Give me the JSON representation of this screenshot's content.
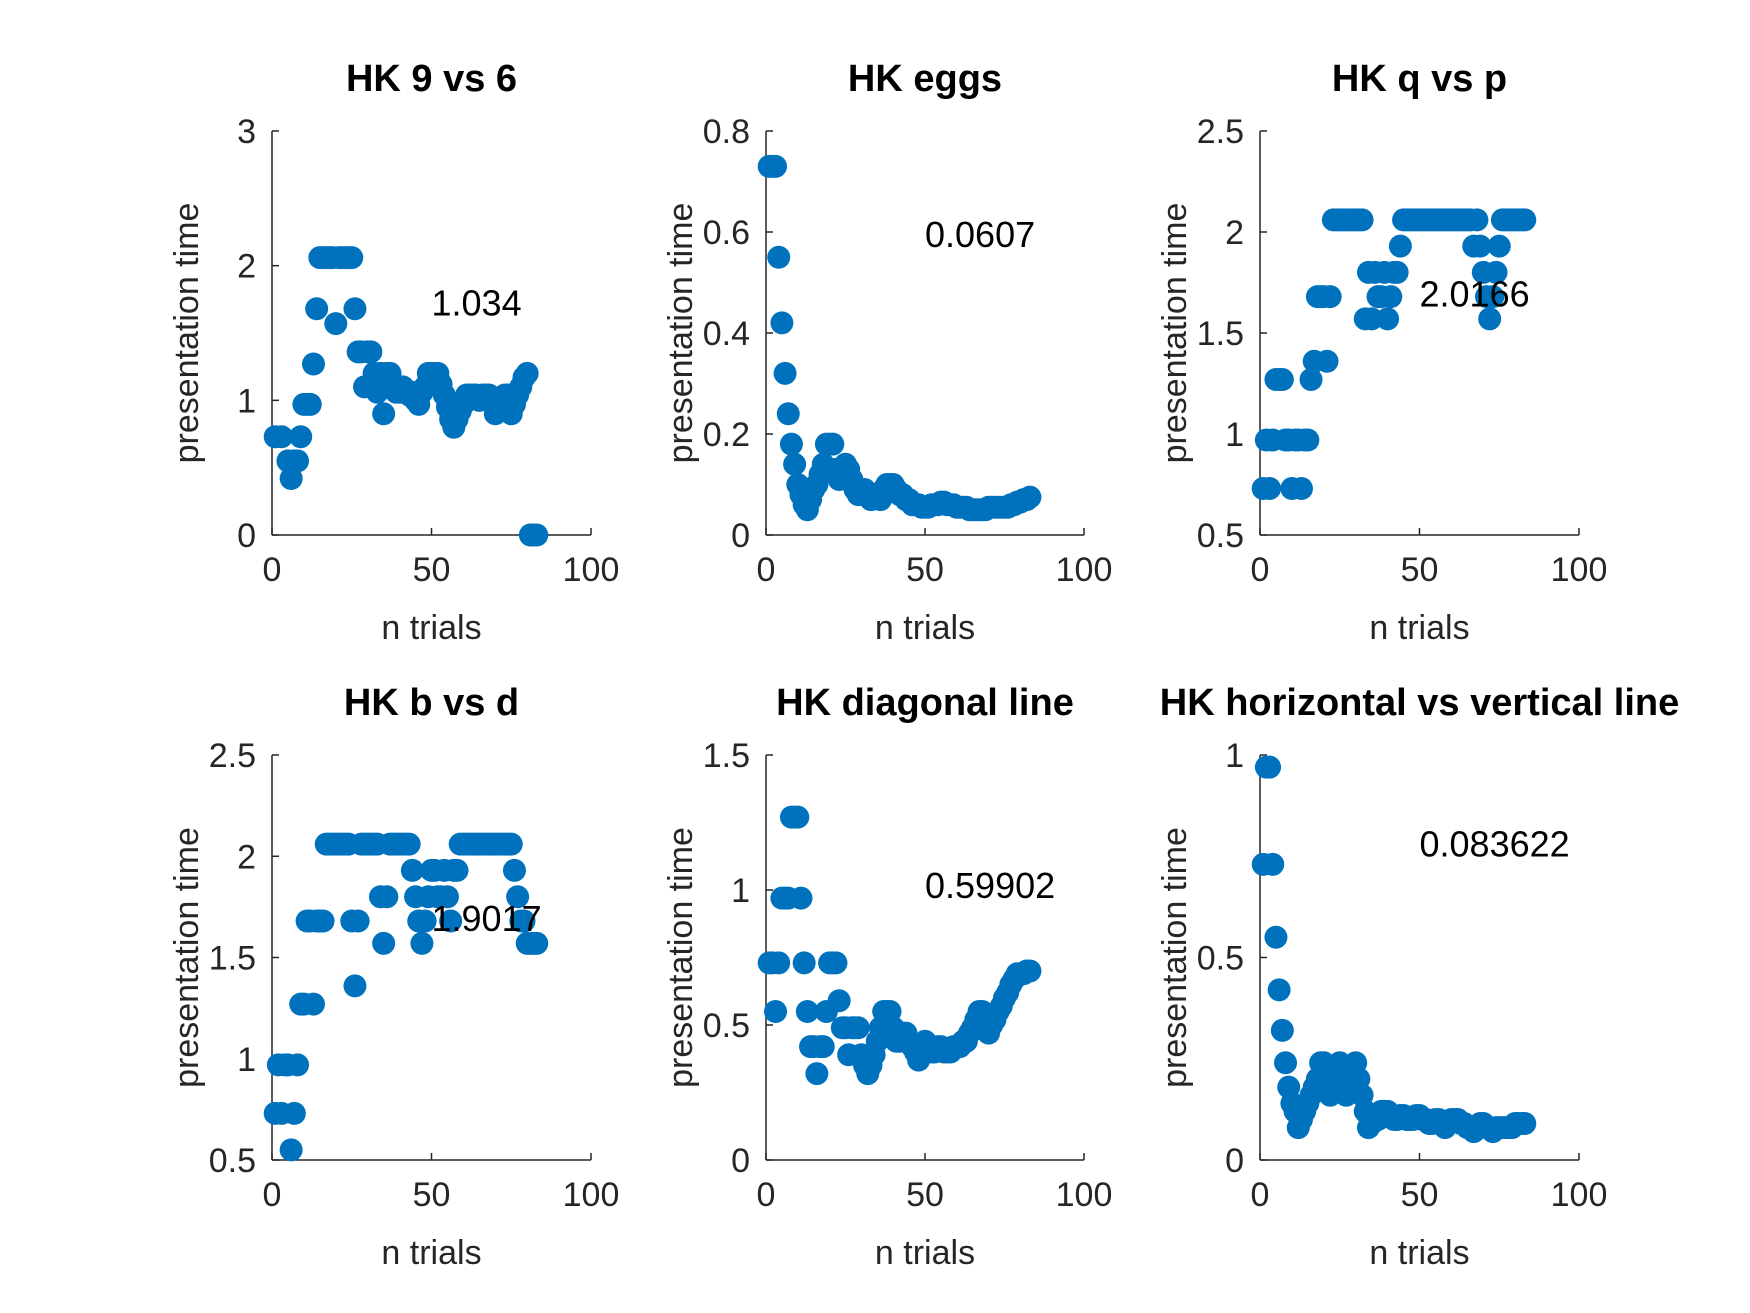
{
  "figure_colors": {
    "marker": "#0072BD",
    "axis": "#262626",
    "text": "#000000"
  },
  "chart_data": [
    {
      "type": "scatter",
      "title": "HK 9 vs 6",
      "xlabel": "n trials",
      "ylabel": "presentation time",
      "xlim": [
        0,
        100
      ],
      "ylim": [
        0,
        3
      ],
      "xticks": [
        "0",
        "50",
        "100"
      ],
      "yticks": [
        "0",
        "1",
        "2",
        "3"
      ],
      "annotation": {
        "text": "1.034",
        "x": 50,
        "y": 1.63
      },
      "x": [
        1,
        3,
        5,
        6,
        7,
        8,
        9,
        10,
        11,
        12,
        13,
        14,
        15,
        16,
        17,
        18,
        19,
        20,
        21,
        22,
        23,
        24,
        25,
        26,
        27,
        28,
        29,
        30,
        31,
        32,
        33,
        34,
        35,
        36,
        37,
        38,
        39,
        40,
        41,
        42,
        43,
        44,
        45,
        46,
        47,
        48,
        49,
        50,
        51,
        52,
        53,
        54,
        55,
        56,
        57,
        58,
        59,
        60,
        61,
        62,
        63,
        64,
        65,
        66,
        67,
        68,
        69,
        70,
        71,
        72,
        73,
        74,
        75,
        76,
        77,
        78,
        79,
        80,
        81,
        82,
        83
      ],
      "y": [
        0.73,
        0.73,
        0.55,
        0.42,
        0.55,
        0.55,
        0.73,
        0.97,
        0.97,
        0.97,
        1.27,
        1.68,
        2.06,
        2.06,
        2.06,
        2.06,
        2.06,
        1.57,
        2.06,
        2.06,
        2.06,
        2.06,
        2.06,
        1.68,
        1.36,
        1.36,
        1.1,
        1.36,
        1.36,
        1.2,
        1.06,
        1.2,
        0.9,
        1.2,
        1.2,
        1.12,
        1.06,
        1.06,
        1.1,
        1.06,
        1.04,
        1.06,
        1.0,
        0.97,
        1.06,
        1.1,
        1.2,
        1.2,
        1.2,
        1.2,
        1.12,
        1.04,
        0.95,
        0.86,
        0.8,
        0.86,
        0.92,
        0.97,
        1.04,
        1.04,
        1.04,
        1.04,
        1.0,
        1.04,
        1.04,
        1.04,
        1.0,
        0.9,
        1.0,
        0.95,
        1.04,
        1.04,
        0.9,
        0.97,
        1.04,
        1.1,
        1.17,
        1.2,
        0,
        0,
        0
      ]
    },
    {
      "type": "scatter",
      "title": "HK eggs",
      "xlabel": "n trials",
      "ylabel": "presentation time",
      "xlim": [
        0,
        100
      ],
      "ylim": [
        0,
        0.8
      ],
      "xticks": [
        "0",
        "50",
        "100"
      ],
      "yticks": [
        "0",
        "0.2",
        "0.4",
        "0.6",
        "0.8"
      ],
      "annotation": {
        "text": "0.0607",
        "x": 50,
        "y": 0.57
      },
      "x": [
        1,
        2,
        3,
        4,
        5,
        6,
        7,
        8,
        9,
        10,
        11,
        12,
        13,
        14,
        15,
        16,
        17,
        18,
        19,
        20,
        21,
        22,
        23,
        24,
        25,
        26,
        27,
        28,
        29,
        30,
        31,
        32,
        33,
        34,
        35,
        36,
        37,
        38,
        39,
        40,
        41,
        42,
        43,
        44,
        45,
        46,
        47,
        48,
        49,
        50,
        51,
        52,
        53,
        54,
        55,
        56,
        57,
        58,
        59,
        60,
        61,
        62,
        63,
        64,
        65,
        66,
        67,
        68,
        69,
        70,
        71,
        72,
        73,
        74,
        75,
        76,
        77,
        78,
        79,
        80,
        81,
        82,
        83
      ],
      "y": [
        0.73,
        0.73,
        0.73,
        0.55,
        0.42,
        0.32,
        0.24,
        0.18,
        0.14,
        0.1,
        0.08,
        0.06,
        0.05,
        0.07,
        0.09,
        0.1,
        0.12,
        0.14,
        0.18,
        0.18,
        0.18,
        0.13,
        0.11,
        0.12,
        0.14,
        0.13,
        0.11,
        0.09,
        0.08,
        0.08,
        0.09,
        0.08,
        0.07,
        0.08,
        0.08,
        0.07,
        0.09,
        0.1,
        0.1,
        0.1,
        0.09,
        0.08,
        0.08,
        0.07,
        0.07,
        0.06,
        0.06,
        0.06,
        0.055,
        0.055,
        0.055,
        0.06,
        0.06,
        0.06,
        0.065,
        0.065,
        0.06,
        0.06,
        0.06,
        0.055,
        0.055,
        0.055,
        0.055,
        0.05,
        0.05,
        0.05,
        0.05,
        0.05,
        0.05,
        0.055,
        0.055,
        0.055,
        0.055,
        0.055,
        0.055,
        0.055,
        0.06,
        0.06,
        0.065,
        0.065,
        0.07,
        0.07,
        0.075
      ]
    },
    {
      "type": "scatter",
      "title": "HK q vs p",
      "xlabel": "n trials",
      "ylabel": "presentation time",
      "xlim": [
        0,
        100
      ],
      "ylim": [
        0.5,
        2.5
      ],
      "xticks": [
        "0",
        "50",
        "100"
      ],
      "yticks": [
        "0.5",
        "1",
        "1.5",
        "2",
        "2.5"
      ],
      "annotation": {
        "text": "2.0166",
        "x": 50,
        "y": 1.63
      },
      "x": [
        1,
        2,
        3,
        4,
        5,
        6,
        7,
        8,
        9,
        10,
        11,
        12,
        13,
        14,
        15,
        16,
        17,
        18,
        19,
        20,
        21,
        22,
        23,
        24,
        25,
        26,
        27,
        28,
        29,
        30,
        31,
        32,
        33,
        34,
        35,
        36,
        37,
        38,
        39,
        40,
        41,
        42,
        43,
        44,
        45,
        46,
        47,
        48,
        49,
        50,
        51,
        52,
        53,
        54,
        55,
        56,
        57,
        58,
        59,
        60,
        61,
        62,
        63,
        64,
        65,
        66,
        67,
        68,
        69,
        70,
        71,
        72,
        73,
        74,
        75,
        76,
        77,
        78,
        79,
        80,
        81,
        82,
        83
      ],
      "y": [
        0.73,
        0.97,
        0.73,
        0.97,
        1.27,
        1.27,
        1.27,
        0.97,
        0.97,
        0.73,
        0.97,
        0.97,
        0.73,
        0.97,
        0.97,
        1.27,
        1.36,
        1.68,
        1.68,
        1.68,
        1.36,
        1.68,
        2.06,
        2.06,
        2.06,
        2.06,
        2.06,
        2.06,
        2.06,
        2.06,
        2.06,
        2.06,
        1.57,
        1.8,
        1.57,
        1.8,
        1.68,
        1.68,
        1.8,
        1.57,
        1.68,
        1.8,
        1.8,
        1.93,
        2.06,
        2.06,
        2.06,
        2.06,
        2.06,
        2.06,
        2.06,
        2.06,
        2.06,
        2.06,
        2.06,
        2.06,
        2.06,
        2.06,
        2.06,
        2.06,
        2.06,
        2.06,
        2.06,
        2.06,
        2.06,
        2.06,
        1.93,
        2.06,
        1.93,
        1.8,
        1.68,
        1.57,
        1.68,
        1.8,
        1.93,
        2.06,
        2.06,
        2.06,
        2.06,
        2.06,
        2.06,
        2.06,
        2.06
      ]
    },
    {
      "type": "scatter",
      "title": "HK b vs d",
      "xlabel": "n trials",
      "ylabel": "presentation time",
      "xlim": [
        0,
        100
      ],
      "ylim": [
        0.5,
        2.5
      ],
      "xticks": [
        "0",
        "50",
        "100"
      ],
      "yticks": [
        "0.5",
        "1",
        "1.5",
        "2",
        "2.5"
      ],
      "annotation": {
        "text": "1.9017",
        "x": 50,
        "y": 1.63
      },
      "x": [
        1,
        2,
        3,
        4,
        5,
        6,
        7,
        8,
        9,
        10,
        11,
        12,
        13,
        14,
        15,
        16,
        17,
        18,
        19,
        20,
        21,
        22,
        23,
        24,
        25,
        26,
        27,
        28,
        29,
        30,
        31,
        32,
        33,
        34,
        35,
        36,
        37,
        38,
        39,
        40,
        41,
        42,
        43,
        44,
        45,
        46,
        47,
        48,
        49,
        50,
        51,
        52,
        53,
        54,
        55,
        56,
        57,
        58,
        59,
        60,
        61,
        62,
        63,
        64,
        65,
        66,
        67,
        68,
        69,
        70,
        71,
        72,
        73,
        74,
        75,
        76,
        77,
        78,
        79,
        80,
        81,
        82,
        83
      ],
      "y": [
        0.73,
        0.97,
        0.73,
        0.97,
        0.97,
        0.55,
        0.73,
        0.97,
        1.27,
        1.27,
        1.68,
        1.68,
        1.27,
        1.68,
        1.68,
        1.68,
        2.06,
        2.06,
        2.06,
        2.06,
        2.06,
        2.06,
        2.06,
        2.06,
        1.68,
        1.36,
        1.68,
        2.06,
        2.06,
        2.06,
        2.06,
        2.06,
        2.06,
        1.8,
        1.57,
        1.8,
        2.06,
        2.06,
        2.06,
        2.06,
        2.06,
        2.06,
        2.06,
        1.93,
        1.8,
        1.68,
        1.57,
        1.68,
        1.8,
        1.93,
        1.93,
        1.8,
        1.8,
        1.93,
        1.8,
        1.68,
        1.93,
        1.93,
        2.06,
        2.06,
        2.06,
        2.06,
        2.06,
        2.06,
        2.06,
        2.06,
        2.06,
        2.06,
        2.06,
        2.06,
        2.06,
        2.06,
        2.06,
        2.06,
        2.06,
        1.93,
        1.8,
        1.68,
        1.68,
        1.57,
        1.57,
        1.57,
        1.57
      ]
    },
    {
      "type": "scatter",
      "title": "HK diagonal line",
      "xlabel": "n trials",
      "ylabel": "presentation time",
      "xlim": [
        0,
        100
      ],
      "ylim": [
        0,
        1.5
      ],
      "xticks": [
        "0",
        "50",
        "100"
      ],
      "yticks": [
        "0",
        "0.5",
        "1",
        "1.5"
      ],
      "annotation": {
        "text": "0.59902",
        "x": 50,
        "y": 0.97
      },
      "x": [
        1,
        2,
        3,
        4,
        5,
        6,
        7,
        8,
        9,
        10,
        11,
        12,
        13,
        14,
        15,
        16,
        17,
        18,
        19,
        20,
        21,
        22,
        23,
        24,
        25,
        26,
        27,
        28,
        29,
        30,
        31,
        32,
        33,
        34,
        35,
        36,
        37,
        38,
        39,
        40,
        41,
        42,
        43,
        44,
        45,
        46,
        47,
        48,
        49,
        50,
        51,
        52,
        53,
        54,
        55,
        56,
        57,
        58,
        59,
        60,
        61,
        62,
        63,
        64,
        65,
        66,
        67,
        68,
        69,
        70,
        71,
        72,
        73,
        74,
        75,
        76,
        77,
        78,
        79,
        80,
        81,
        82,
        83
      ],
      "y": [
        0.73,
        0.73,
        0.55,
        0.73,
        0.97,
        0.97,
        0.97,
        1.27,
        1.27,
        1.27,
        0.97,
        0.73,
        0.55,
        0.42,
        0.42,
        0.32,
        0.42,
        0.42,
        0.55,
        0.73,
        0.73,
        0.73,
        0.59,
        0.49,
        0.49,
        0.39,
        0.49,
        0.49,
        0.49,
        0.39,
        0.35,
        0.32,
        0.35,
        0.39,
        0.44,
        0.49,
        0.55,
        0.55,
        0.55,
        0.49,
        0.44,
        0.44,
        0.47,
        0.47,
        0.44,
        0.42,
        0.4,
        0.37,
        0.4,
        0.44,
        0.42,
        0.4,
        0.4,
        0.42,
        0.42,
        0.4,
        0.4,
        0.4,
        0.42,
        0.42,
        0.42,
        0.44,
        0.44,
        0.47,
        0.49,
        0.52,
        0.55,
        0.55,
        0.5,
        0.47,
        0.5,
        0.52,
        0.55,
        0.57,
        0.6,
        0.62,
        0.65,
        0.67,
        0.69,
        0.69,
        0.69,
        0.7,
        0.7
      ]
    },
    {
      "type": "scatter",
      "title": "HK horizontal vs vertical line",
      "xlabel": "n trials",
      "ylabel": "presentation time",
      "xlim": [
        0,
        100
      ],
      "ylim": [
        0,
        1
      ],
      "xticks": [
        "0",
        "50",
        "100"
      ],
      "yticks": [
        "0",
        "0.5",
        "1"
      ],
      "annotation": {
        "text": "0.083622",
        "x": 50,
        "y": 0.75
      },
      "x": [
        1,
        2,
        3,
        4,
        5,
        6,
        7,
        8,
        9,
        10,
        11,
        12,
        13,
        14,
        15,
        16,
        17,
        18,
        19,
        20,
        21,
        22,
        23,
        24,
        25,
        26,
        27,
        28,
        29,
        30,
        31,
        32,
        33,
        34,
        35,
        36,
        37,
        38,
        39,
        40,
        41,
        42,
        43,
        44,
        45,
        46,
        47,
        48,
        49,
        50,
        51,
        52,
        53,
        54,
        55,
        56,
        57,
        58,
        59,
        60,
        61,
        62,
        63,
        64,
        65,
        66,
        67,
        68,
        69,
        70,
        71,
        72,
        73,
        74,
        75,
        76,
        77,
        78,
        79,
        80,
        81,
        82,
        83
      ],
      "y": [
        0.73,
        0.97,
        0.97,
        0.73,
        0.55,
        0.42,
        0.32,
        0.24,
        0.18,
        0.14,
        0.12,
        0.08,
        0.1,
        0.12,
        0.14,
        0.16,
        0.18,
        0.2,
        0.24,
        0.24,
        0.2,
        0.16,
        0.18,
        0.2,
        0.24,
        0.2,
        0.16,
        0.18,
        0.2,
        0.24,
        0.2,
        0.16,
        0.12,
        0.08,
        0.09,
        0.1,
        0.1,
        0.12,
        0.12,
        0.12,
        0.11,
        0.1,
        0.1,
        0.11,
        0.11,
        0.1,
        0.1,
        0.1,
        0.11,
        0.11,
        0.1,
        0.1,
        0.09,
        0.09,
        0.1,
        0.1,
        0.09,
        0.08,
        0.09,
        0.1,
        0.1,
        0.1,
        0.09,
        0.09,
        0.08,
        0.08,
        0.07,
        0.08,
        0.09,
        0.09,
        0.08,
        0.08,
        0.07,
        0.08,
        0.08,
        0.08,
        0.08,
        0.08,
        0.08,
        0.09,
        0.09,
        0.09,
        0.09
      ]
    }
  ]
}
